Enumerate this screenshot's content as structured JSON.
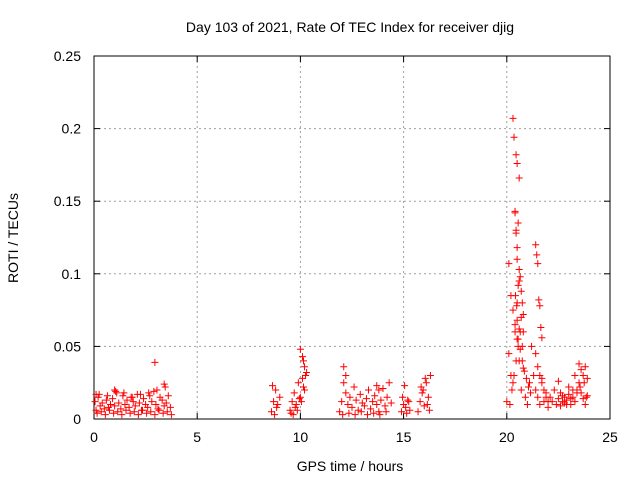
{
  "chart_data": {
    "type": "scatter",
    "title": "Day 103 of 2021, Rate Of TEC Index for receiver djig",
    "xlabel": "GPS time / hours",
    "ylabel": "ROTI / TECUs",
    "xlim": [
      0,
      25
    ],
    "ylim": [
      0,
      0.25
    ],
    "grid": true,
    "marker": "+",
    "color": "#ff0000",
    "x_ticks": [
      0,
      5,
      10,
      15,
      20,
      25
    ],
    "y_ticks": [
      0,
      0.05,
      0.1,
      0.15,
      0.2,
      0.25
    ],
    "x_tick_labels": [
      "0",
      "5",
      "10",
      "15",
      "20",
      "25"
    ],
    "y_tick_labels": [
      "0",
      "0.05",
      "0.1",
      "0.15",
      "0.2",
      "0.25"
    ],
    "series": [
      {
        "name": "ROTI",
        "x": [
          0.05,
          0.1,
          0.2,
          0.3,
          0.4,
          0.5,
          0.6,
          0.7,
          0.8,
          0.9,
          1.0,
          1.1,
          1.2,
          1.3,
          1.4,
          1.5,
          1.6,
          1.7,
          1.8,
          1.9,
          2.0,
          2.1,
          2.2,
          2.3,
          2.4,
          2.5,
          2.6,
          2.7,
          2.8,
          2.9,
          3.0,
          3.1,
          3.2,
          3.3,
          3.4,
          3.5,
          3.6,
          3.7,
          0.15,
          0.35,
          0.55,
          0.75,
          0.95,
          1.15,
          1.35,
          1.55,
          1.75,
          1.95,
          2.15,
          2.35,
          2.55,
          2.75,
          2.95,
          3.15,
          3.35,
          3.55,
          3.75,
          0.25,
          0.65,
          1.05,
          1.45,
          1.85,
          2.25,
          2.65,
          3.05,
          3.45,
          2.95,
          3.4,
          1.0,
          0.1,
          8.6,
          8.7,
          8.8,
          8.9,
          9.0,
          8.65,
          8.85,
          8.75,
          9.5,
          9.6,
          9.7,
          9.8,
          9.9,
          10.0,
          10.1,
          10.2,
          10.3,
          9.55,
          9.75,
          9.95,
          10.15,
          10.25,
          9.65,
          9.85,
          10.05,
          10.0,
          10.1,
          10.2,
          10.15,
          11.9,
          12.0,
          12.1,
          12.2,
          12.3,
          12.4,
          12.5,
          12.6,
          12.7,
          12.8,
          12.9,
          13.0,
          13.1,
          13.2,
          13.3,
          13.4,
          13.5,
          13.6,
          13.7,
          13.8,
          13.9,
          14.0,
          14.1,
          14.2,
          14.3,
          14.4,
          12.05,
          12.35,
          12.65,
          12.95,
          13.25,
          13.55,
          13.85,
          14.15,
          12.1,
          12.2,
          13.7,
          13.8,
          14.9,
          15.0,
          15.1,
          15.2,
          15.3,
          14.95,
          15.15,
          15.25,
          15.05,
          15.7,
          15.8,
          15.9,
          16.0,
          16.1,
          16.2,
          16.3,
          15.85,
          16.05,
          16.25,
          15.95,
          16.15,
          20.0,
          20.1,
          20.2,
          20.3,
          20.4,
          20.5,
          20.6,
          20.7,
          20.8,
          20.9,
          21.0,
          21.1,
          21.2,
          21.3,
          21.4,
          21.5,
          21.6,
          21.7,
          21.8,
          21.9,
          22.0,
          22.1,
          22.2,
          22.3,
          22.4,
          22.5,
          22.6,
          22.7,
          22.8,
          22.9,
          23.0,
          23.1,
          23.2,
          23.3,
          23.4,
          23.5,
          23.6,
          23.7,
          23.8,
          23.9,
          20.1,
          20.2,
          20.3,
          20.4,
          20.5,
          20.6,
          20.7,
          20.8,
          20.15,
          20.25,
          20.35,
          20.45,
          20.55,
          20.65,
          20.75,
          20.4,
          20.45,
          20.5,
          20.55,
          20.6,
          20.65,
          20.7,
          20.75,
          20.8,
          20.3,
          20.35,
          20.45,
          20.5,
          20.6,
          20.4,
          20.45,
          20.5,
          20.55,
          20.42,
          20.48,
          20.5,
          20.6,
          21.4,
          21.45,
          21.5,
          21.55,
          21.6,
          21.65,
          21.7,
          21.4,
          21.5,
          21.6,
          21.7,
          21.8,
          21.9,
          22.0,
          22.5,
          22.6,
          22.7,
          22.8,
          22.9,
          23.0,
          23.1,
          23.2,
          23.3,
          23.4,
          23.5,
          23.6,
          23.7,
          23.8,
          23.9,
          23.55,
          23.75,
          23.85,
          20.55,
          20.65,
          20.75,
          20.85,
          20.95,
          21.05,
          21.15
        ],
        "y": [
          0.012,
          0.006,
          0.015,
          0.009,
          0.011,
          0.007,
          0.013,
          0.008,
          0.01,
          0.014,
          0.009,
          0.018,
          0.011,
          0.007,
          0.016,
          0.01,
          0.013,
          0.008,
          0.015,
          0.012,
          0.009,
          0.017,
          0.011,
          0.006,
          0.014,
          0.01,
          0.008,
          0.016,
          0.012,
          0.019,
          0.01,
          0.007,
          0.015,
          0.013,
          0.009,
          0.011,
          0.016,
          0.008,
          0.004,
          0.005,
          0.003,
          0.006,
          0.004,
          0.005,
          0.003,
          0.006,
          0.004,
          0.005,
          0.003,
          0.006,
          0.004,
          0.005,
          0.003,
          0.006,
          0.004,
          0.005,
          0.003,
          0.017,
          0.016,
          0.019,
          0.018,
          0.015,
          0.017,
          0.018,
          0.02,
          0.022,
          0.039,
          0.024,
          0.02,
          0.017,
          0.005,
          0.012,
          0.02,
          0.01,
          0.015,
          0.023,
          0.008,
          0.003,
          0.006,
          0.012,
          0.018,
          0.01,
          0.025,
          0.015,
          0.028,
          0.02,
          0.032,
          0.004,
          0.008,
          0.014,
          0.022,
          0.03,
          0.003,
          0.006,
          0.012,
          0.048,
          0.043,
          0.036,
          0.04,
          0.005,
          0.012,
          0.025,
          0.018,
          0.01,
          0.015,
          0.008,
          0.022,
          0.013,
          0.006,
          0.017,
          0.011,
          0.009,
          0.014,
          0.02,
          0.007,
          0.012,
          0.016,
          0.01,
          0.005,
          0.013,
          0.021,
          0.009,
          0.015,
          0.025,
          0.011,
          0.003,
          0.004,
          0.003,
          0.005,
          0.003,
          0.004,
          0.003,
          0.005,
          0.036,
          0.03,
          0.023,
          0.02,
          0.005,
          0.01,
          0.008,
          0.013,
          0.006,
          0.015,
          0.004,
          0.012,
          0.023,
          0.005,
          0.012,
          0.018,
          0.009,
          0.025,
          0.015,
          0.03,
          0.022,
          0.028,
          0.006,
          0.02,
          0.01,
          0.012,
          0.045,
          0.03,
          0.025,
          0.06,
          0.08,
          0.04,
          0.02,
          0.035,
          0.015,
          0.01,
          0.025,
          0.05,
          0.03,
          0.02,
          0.015,
          0.01,
          0.028,
          0.012,
          0.018,
          0.008,
          0.015,
          0.012,
          0.02,
          0.01,
          0.014,
          0.009,
          0.016,
          0.011,
          0.013,
          0.017,
          0.01,
          0.015,
          0.012,
          0.02,
          0.025,
          0.018,
          0.014,
          0.01,
          0.016,
          0.107,
          0.085,
          0.075,
          0.065,
          0.055,
          0.095,
          0.07,
          0.06,
          0.01,
          0.02,
          0.03,
          0.04,
          0.05,
          0.06,
          0.05,
          0.143,
          0.128,
          0.118,
          0.135,
          0.103,
          0.098,
          0.088,
          0.08,
          0.072,
          0.207,
          0.194,
          0.182,
          0.176,
          0.166,
          0.142,
          0.13,
          0.11,
          0.092,
          0.085,
          0.078,
          0.068,
          0.062,
          0.12,
          0.113,
          0.107,
          0.082,
          0.078,
          0.063,
          0.056,
          0.045,
          0.036,
          0.03,
          0.025,
          0.02,
          0.015,
          0.012,
          0.026,
          0.018,
          0.012,
          0.015,
          0.01,
          0.022,
          0.014,
          0.02,
          0.03,
          0.018,
          0.038,
          0.034,
          0.03,
          0.036,
          0.028,
          0.022,
          0.025,
          0.015,
          0.055,
          0.048,
          0.04,
          0.033,
          0.028,
          0.022,
          0.018
        ]
      }
    ]
  }
}
